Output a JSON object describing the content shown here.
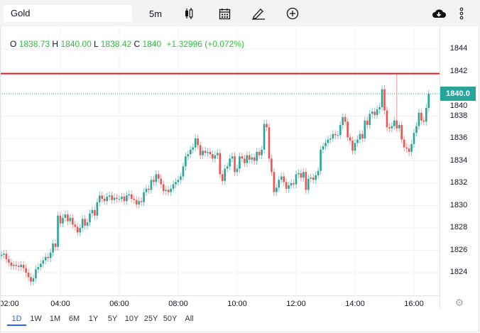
{
  "toolbar": {
    "symbol": "Gold",
    "interval": "5m",
    "icons": [
      "candlestick-icon",
      "calendar-icon",
      "pencil-icon",
      "plus-circle-icon",
      "cloud-download-icon",
      "more-vertical-icon"
    ]
  },
  "legend": {
    "o_label": "O",
    "o": "1838.73",
    "h_label": "H",
    "h": "1840.00",
    "l_label": "L",
    "l": "1838.42",
    "c_label": "C",
    "c": "1840",
    "change": "+1.32996 (+0.072%)"
  },
  "last_price_label": "1840.0",
  "ranges": [
    "1D",
    "1W",
    "1M",
    "6M",
    "1Y",
    "5Y",
    "10Y",
    "25Y",
    "50Y",
    "All"
  ],
  "active_range": "1D",
  "colors": {
    "up": "#26a69a",
    "down": "#ef5350",
    "hline": "#e8191b",
    "accent": "#2962ff"
  },
  "chart_data": {
    "type": "candlestick",
    "interval": "5m",
    "start_time": "02:00",
    "x_tick_labels": [
      "02:00",
      "04:00",
      "06:00",
      "08:00",
      "10:00",
      "12:00",
      "14:00",
      "16:00"
    ],
    "y_tick_labels": [
      "1844",
      "1842",
      "1840",
      "1838",
      "1836",
      "1834",
      "1832",
      "1830",
      "1828",
      "1826",
      "1824"
    ],
    "ylim": [
      1822.2,
      1845
    ],
    "grid": true,
    "horizontal_line": 1841.8,
    "last_price": 1840.0,
    "open_first": 1825.5,
    "close": [
      1825.6,
      1825.7,
      1825.2,
      1824.9,
      1824.6,
      1824.7,
      1824.6,
      1824.5,
      1824.7,
      1824.4,
      1824.0,
      1823.6,
      1823.2,
      1823.5,
      1824.3,
      1824.5,
      1824.8,
      1825.1,
      1825.4,
      1825.3,
      1825.8,
      1826.6,
      1826.3,
      1829.1,
      1828.4,
      1828.9,
      1829.2,
      1828.6,
      1828.9,
      1828.3,
      1828.1,
      1827.6,
      1828.0,
      1828.8,
      1828.2,
      1828.5,
      1829.3,
      1829.6,
      1829.1,
      1830.3,
      1830.9,
      1830.6,
      1830.4,
      1830.8,
      1830.9,
      1830.5,
      1830.7,
      1830.6,
      1830.6,
      1830.8,
      1830.4,
      1830.9,
      1831.0,
      1830.6,
      1830.5,
      1830.1,
      1830.4,
      1830.3,
      1831.2,
      1831.5,
      1831.4,
      1832.3,
      1832.1,
      1832.8,
      1832.4,
      1831.9,
      1831.3,
      1831.4,
      1831.2,
      1831.5,
      1831.9,
      1832.1,
      1832.3,
      1832.6,
      1833.5,
      1834.4,
      1834.6,
      1835.0,
      1835.2,
      1836.0,
      1835.4,
      1834.5,
      1834.9,
      1834.7,
      1834.8,
      1834.6,
      1834.2,
      1834.5,
      1834.7,
      1832.8,
      1832.2,
      1833.3,
      1833.5,
      1834.2,
      1834.4,
      1833.0,
      1833.3,
      1834.4,
      1834.2,
      1833.8,
      1834.5,
      1834.1,
      1834.3,
      1834.0,
      1834.8,
      1834.5,
      1835.0,
      1837.3,
      1837.0,
      1834.2,
      1833.0,
      1831.2,
      1831.6,
      1832.3,
      1832.6,
      1832.1,
      1831.5,
      1831.8,
      1832.0,
      1831.9,
      1832.8,
      1832.9,
      1832.5,
      1833.0,
      1831.4,
      1832.4,
      1832.5,
      1832.3,
      1832.7,
      1833.1,
      1835.0,
      1835.3,
      1835.6,
      1835.9,
      1836.0,
      1836.4,
      1836.3,
      1836.3,
      1837.2,
      1837.9,
      1837.5,
      1836.1,
      1835.8,
      1834.9,
      1835.6,
      1835.9,
      1836.4,
      1836.0,
      1837.6,
      1837.2,
      1838.2,
      1838.4,
      1838.1,
      1838.6,
      1838.8,
      1840.4,
      1838.5,
      1837.0,
      1836.9,
      1837.1,
      1837.6,
      1836.9,
      1837.2,
      1835.9,
      1835.2,
      1835.1,
      1834.8,
      1835.5,
      1836.5,
      1837.1,
      1838.3,
      1837.6,
      1837.5,
      1838.73,
      1840.0
    ]
  }
}
